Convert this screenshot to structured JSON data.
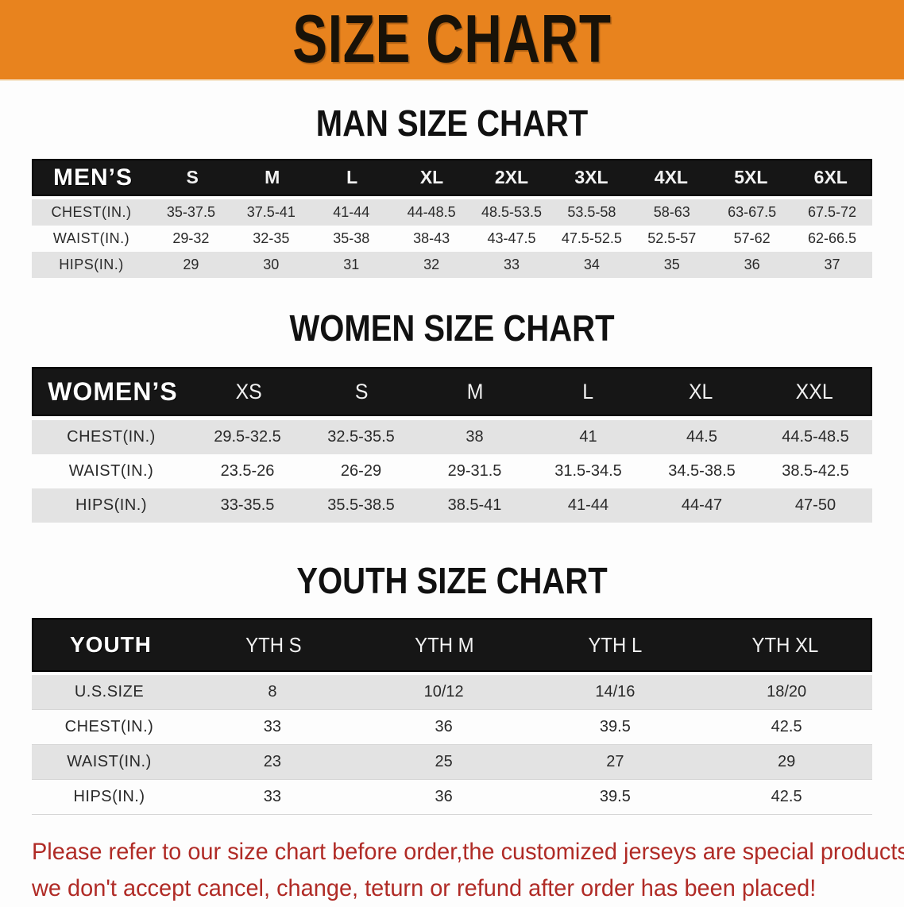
{
  "banner": {
    "title": "SIZE CHART",
    "bg_color": "#E8831E",
    "text_color": "#181208"
  },
  "sections": [
    {
      "heading": "MAN SIZE CHART",
      "table": {
        "header": [
          "MEN’S",
          "S",
          "M",
          "L",
          "XL",
          "2XL",
          "3XL",
          "4XL",
          "5XL",
          "6XL"
        ],
        "rows": [
          {
            "label": "CHEST(IN.)",
            "values": [
              "35-37.5",
              "37.5-41",
              "41-44",
              "44-48.5",
              "48.5-53.5",
              "53.5-58",
              "58-63",
              "63-67.5",
              "67.5-72"
            ]
          },
          {
            "label": "WAIST(IN.)",
            "values": [
              "29-32",
              "32-35",
              "35-38",
              "38-43",
              "43-47.5",
              "47.5-52.5",
              "52.5-57",
              "57-62",
              "62-66.5"
            ]
          },
          {
            "label": "HIPS(IN.)",
            "values": [
              "29",
              "30",
              "31",
              "32",
              "33",
              "34",
              "35",
              "36",
              "37"
            ]
          }
        ]
      }
    },
    {
      "heading": "WOMEN SIZE CHART",
      "table": {
        "header": [
          "WOMEN’S",
          "XS",
          "S",
          "M",
          "L",
          "XL",
          "XXL"
        ],
        "rows": [
          {
            "label": "CHEST(IN.)",
            "values": [
              "29.5-32.5",
              "32.5-35.5",
              "38",
              "41",
              "44.5",
              "44.5-48.5"
            ]
          },
          {
            "label": "WAIST(IN.)",
            "values": [
              "23.5-26",
              "26-29",
              "29-31.5",
              "31.5-34.5",
              "34.5-38.5",
              "38.5-42.5"
            ]
          },
          {
            "label": "HIPS(IN.)",
            "values": [
              "33-35.5",
              "35.5-38.5",
              "38.5-41",
              "41-44",
              "44-47",
              "47-50"
            ]
          }
        ]
      }
    },
    {
      "heading": "YOUTH SIZE CHART",
      "table": {
        "header": [
          "YOUTH",
          "YTH S",
          "YTH M",
          "YTH L",
          "YTH XL"
        ],
        "rows": [
          {
            "label": "U.S.SIZE",
            "values": [
              "8",
              "10/12",
              "14/16",
              "18/20"
            ]
          },
          {
            "label": "CHEST(IN.)",
            "values": [
              "33",
              "36",
              "39.5",
              "42.5"
            ]
          },
          {
            "label": "WAIST(IN.)",
            "values": [
              "23",
              "25",
              "27",
              "29"
            ]
          },
          {
            "label": "HIPS(IN.)",
            "values": [
              "33",
              "36",
              "39.5",
              "42.5"
            ]
          }
        ]
      }
    }
  ],
  "footer": {
    "line1": "Please refer to our size chart before order,the customized jerseys are special products,",
    "line2": "we don't accept cancel, change, teturn or refund after order has been placed!",
    "text_color": "#B02B26"
  }
}
